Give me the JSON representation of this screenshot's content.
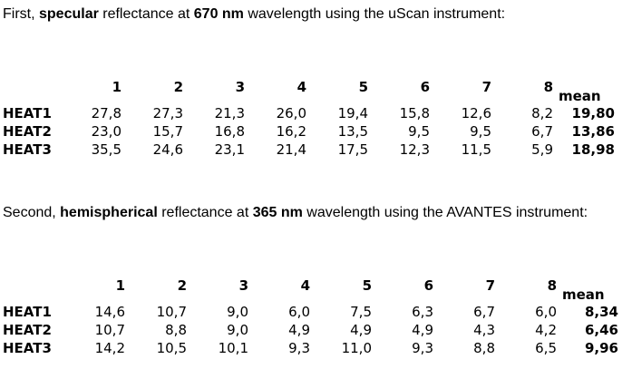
{
  "section1": {
    "intro": {
      "pre": "First, ",
      "kind": "specular",
      "mid": " reflectance at ",
      "wavelength": "670 nm",
      "post": " wavelength using the uScan instrument:"
    },
    "table": {
      "columns": [
        "1",
        "2",
        "3",
        "4",
        "5",
        "6",
        "7",
        "8"
      ],
      "mean_label": "mean",
      "rows": [
        {
          "label": "HEAT1",
          "values": [
            "27,8",
            "27,3",
            "21,3",
            "26,0",
            "19,4",
            "15,8",
            "12,6",
            "8,2"
          ],
          "mean": "19,80"
        },
        {
          "label": "HEAT2",
          "values": [
            "23,0",
            "15,7",
            "16,8",
            "16,2",
            "13,5",
            "9,5",
            "9,5",
            "6,7"
          ],
          "mean": "13,86"
        },
        {
          "label": "HEAT3",
          "values": [
            "35,5",
            "24,6",
            "23,1",
            "21,4",
            "17,5",
            "12,3",
            "11,5",
            "5,9"
          ],
          "mean": "18,98"
        }
      ]
    }
  },
  "section2": {
    "intro": {
      "pre": "Second, ",
      "kind": "hemispherical",
      "mid": " reflectance at ",
      "wavelength": "365 nm",
      "post": " wavelength using the AVANTES instrument:"
    },
    "table": {
      "columns": [
        "1",
        "2",
        "3",
        "4",
        "5",
        "6",
        "7",
        "8"
      ],
      "mean_label": "mean",
      "rows": [
        {
          "label": "HEAT1",
          "values": [
            "14,6",
            "10,7",
            "9,0",
            "6,0",
            "7,5",
            "6,3",
            "6,7",
            "6,0"
          ],
          "mean": "8,34"
        },
        {
          "label": "HEAT2",
          "values": [
            "10,7",
            "8,8",
            "9,0",
            "4,9",
            "4,9",
            "4,9",
            "4,3",
            "4,2"
          ],
          "mean": "6,46"
        },
        {
          "label": "HEAT3",
          "values": [
            "14,2",
            "10,5",
            "10,1",
            "9,3",
            "11,0",
            "9,3",
            "8,8",
            "6,5"
          ],
          "mean": "9,96"
        }
      ]
    }
  }
}
